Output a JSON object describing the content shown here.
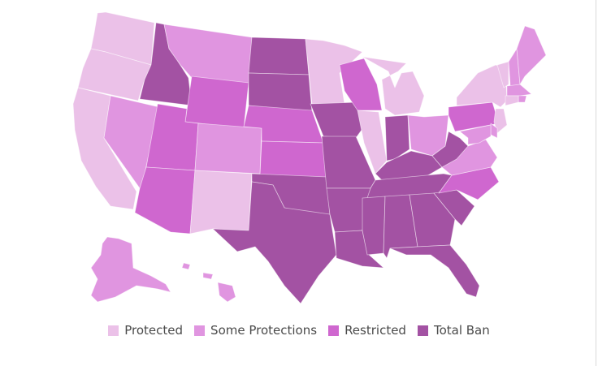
{
  "legend": {
    "categories": [
      {
        "key": "protected",
        "label": "Protected",
        "color": "#ebc1e8"
      },
      {
        "key": "some",
        "label": "Some Protections",
        "color": "#e095e0"
      },
      {
        "key": "restricted",
        "label": "Restricted",
        "color": "#cf67cf"
      },
      {
        "key": "ban",
        "label": "Total Ban",
        "color": "#a352a3"
      }
    ]
  },
  "states": {
    "WA": "protected",
    "OR": "protected",
    "CA": "protected",
    "NV": "some",
    "ID": "ban",
    "MT": "some",
    "WY": "restricted",
    "UT": "restricted",
    "AZ": "restricted",
    "CO": "some",
    "NM": "protected",
    "ND": "ban",
    "SD": "ban",
    "NE": "restricted",
    "KS": "restricted",
    "OK": "ban",
    "TX": "ban",
    "MN": "protected",
    "IA": "ban",
    "MO": "ban",
    "AR": "ban",
    "LA": "ban",
    "WI": "restricted",
    "IL": "protected",
    "MI": "protected",
    "IN": "ban",
    "OH": "some",
    "KY": "ban",
    "TN": "ban",
    "MS": "ban",
    "AL": "ban",
    "GA": "ban",
    "FL": "ban",
    "SC": "ban",
    "NC": "restricted",
    "VA": "some",
    "WV": "ban",
    "PA": "restricted",
    "NY": "protected",
    "VT": "protected",
    "NH": "some",
    "ME": "some",
    "MA": "some",
    "RI": "some",
    "CT": "protected",
    "NJ": "protected",
    "DE": "some",
    "MD": "some",
    "AK": "some",
    "HI": "some"
  }
}
